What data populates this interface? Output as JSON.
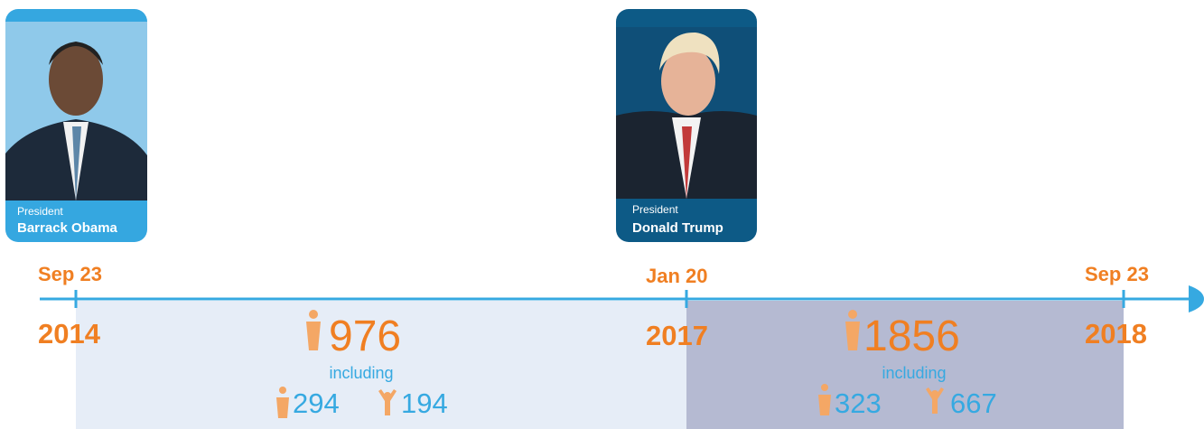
{
  "presidents": [
    {
      "role": "President",
      "name": "Barrack Obama"
    },
    {
      "role": "President",
      "name": "Donald Trump"
    }
  ],
  "timeline": {
    "dates": [
      {
        "day": "Sep 23",
        "year": "2014"
      },
      {
        "day": "Jan 20",
        "year": "2017"
      },
      {
        "day": "Sep 23",
        "year": "2018"
      }
    ]
  },
  "periods": [
    {
      "total": 976,
      "including": "including",
      "women": 294,
      "children": 194
    },
    {
      "total": 1856,
      "including": "including",
      "women": 323,
      "children": 667
    }
  ]
}
